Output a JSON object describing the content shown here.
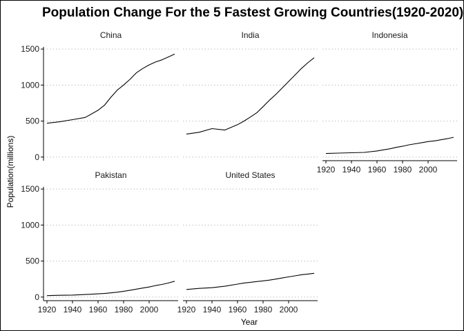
{
  "chart_data": {
    "type": "line",
    "title": "Population Change For the 5 Fastest Growing Countries(1920-2020)",
    "xlabel": "Year",
    "ylabel": "Population(millions)",
    "xlim": [
      1920,
      2020
    ],
    "ylim": [
      0,
      1500
    ],
    "x_ticks": [
      "1920",
      "1940",
      "1960",
      "1980",
      "2000"
    ],
    "y_ticks": [
      "0",
      "500",
      "1000",
      "1500"
    ],
    "grid": "horizontal dotted",
    "line_color": "#000000",
    "x": [
      1920,
      1930,
      1940,
      1950,
      1960,
      1965,
      1970,
      1975,
      1980,
      1985,
      1990,
      1995,
      2000,
      2005,
      2010,
      2015,
      2020
    ],
    "series": [
      {
        "name": "China",
        "values": [
          470,
          490,
          520,
          550,
          650,
          720,
          830,
          930,
          1000,
          1080,
          1170,
          1230,
          1280,
          1320,
          1350,
          1390,
          1430
        ]
      },
      {
        "name": "India",
        "values": [
          320,
          345,
          395,
          375,
          450,
          500,
          555,
          615,
          700,
          790,
          870,
          960,
          1050,
          1140,
          1230,
          1310,
          1380
        ]
      },
      {
        "name": "Indonesia",
        "values": [
          50,
          55,
          60,
          65,
          85,
          100,
          115,
          135,
          150,
          170,
          185,
          200,
          215,
          225,
          240,
          255,
          275
        ]
      },
      {
        "name": "Pakistan",
        "values": [
          20,
          25,
          28,
          35,
          45,
          50,
          58,
          68,
          80,
          95,
          110,
          125,
          140,
          160,
          175,
          195,
          220
        ]
      },
      {
        "name": "United States",
        "values": [
          105,
          120,
          130,
          150,
          180,
          195,
          205,
          215,
          225,
          235,
          250,
          265,
          280,
          295,
          310,
          320,
          330
        ]
      }
    ]
  }
}
